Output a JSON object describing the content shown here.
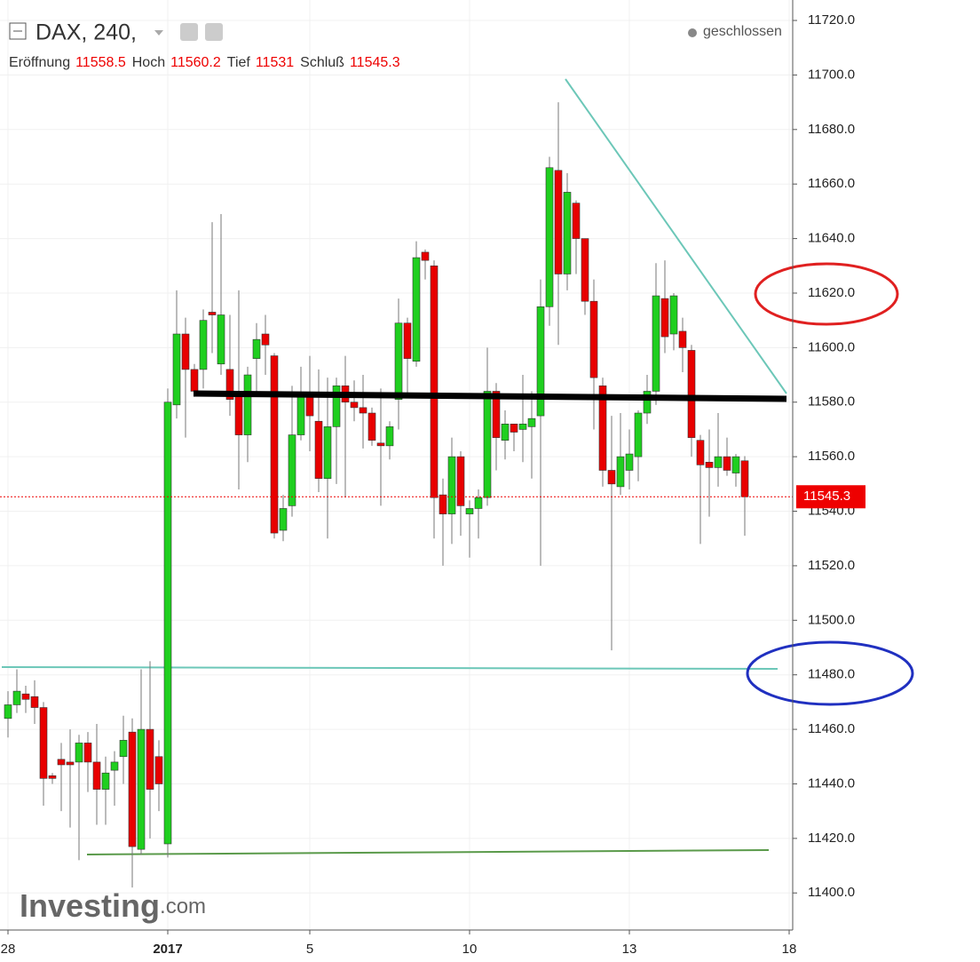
{
  "chart_data": {
    "type": "candlestick",
    "symbol": "DAX, 240,",
    "status": "geschlossen",
    "labels": {
      "open": "Eröffnung",
      "high": "Hoch",
      "low": "Tief",
      "close": "Schluß"
    },
    "watermark": "Investing",
    "watermark_suffix": ".com",
    "up_color": "#1fcf1f",
    "down_color": "#e80000",
    "grid": true,
    "xlim": [
      -0.9,
      88.4
    ],
    "ylim": [
      11386.4,
      11727.5
    ],
    "xticks": [
      {
        "value": 0,
        "label": "28"
      },
      {
        "value": 18,
        "label": "2017"
      },
      {
        "value": 34,
        "label": "5"
      },
      {
        "value": 52,
        "label": "10"
      },
      {
        "value": 70,
        "label": "13"
      },
      {
        "value": 88,
        "label": "18"
      }
    ],
    "yticks": [
      {
        "value": 11400,
        "label": "11400.0"
      },
      {
        "value": 11420,
        "label": "11420.0"
      },
      {
        "value": 11440,
        "label": "11440.0"
      },
      {
        "value": 11460,
        "label": "11460.0"
      },
      {
        "value": 11480,
        "label": "11480.0"
      },
      {
        "value": 11500,
        "label": "11500.0"
      },
      {
        "value": 11520,
        "label": "11520.0"
      },
      {
        "value": 11540,
        "label": "11540.0"
      },
      {
        "value": 11560,
        "label": "11560.0"
      },
      {
        "value": 11580,
        "label": "11580.0"
      },
      {
        "value": 11600,
        "label": "11600.0"
      },
      {
        "value": 11620,
        "label": "11620.0"
      },
      {
        "value": 11640,
        "label": "11640.0"
      },
      {
        "value": 11660,
        "label": "11660.0"
      },
      {
        "value": 11680,
        "label": "11680.0"
      },
      {
        "value": 11700,
        "label": "11700.0"
      },
      {
        "value": 11720,
        "label": "11720.0"
      }
    ],
    "open": [
      11464,
      11469,
      11473,
      11472,
      11468,
      11443,
      11449,
      11448,
      11448,
      11455,
      11448,
      11438,
      11445,
      11450,
      11459,
      11416,
      11460,
      11450,
      11418,
      11579,
      11605,
      11592,
      11592,
      11613,
      11594,
      11592,
      11582,
      11568,
      11596,
      11605,
      11597,
      11533,
      11542,
      11568,
      11582,
      11573,
      11552,
      11571,
      11586,
      11580,
      11578,
      11576,
      11565,
      11564,
      11581,
      11609,
      11595,
      11635,
      11630,
      11546,
      11539,
      11560,
      11539,
      11541,
      11545,
      11584,
      11566,
      11572,
      11570,
      11571,
      11575,
      11615,
      11665,
      11627,
      11653,
      11640,
      11617,
      11586,
      11555,
      11549,
      11555,
      11560,
      11576,
      11584,
      11618,
      11605,
      11606,
      11599,
      11566,
      11558,
      11556,
      11560,
      11554,
      11558.5
    ],
    "high": [
      11474,
      11482,
      11476,
      11478,
      11470,
      11444,
      11455,
      11460,
      11458,
      11459,
      11462,
      11450,
      11452,
      11465,
      11464,
      11482,
      11485,
      11456,
      11585,
      11621,
      11611,
      11594,
      11614,
      11646,
      11649,
      11612,
      11621,
      11593,
      11609,
      11612,
      11598,
      11546,
      11586,
      11593,
      11597,
      11592,
      11589,
      11589,
      11597,
      11588,
      11590,
      11578,
      11585,
      11573,
      11618,
      11611,
      11639,
      11636,
      11632,
      11552,
      11567,
      11562,
      11544,
      11548,
      11600,
      11587,
      11577,
      11572,
      11590,
      11584,
      11625,
      11670,
      11690,
      11664,
      11654,
      11640,
      11625,
      11589,
      11575,
      11576,
      11570,
      11577,
      11590,
      11631,
      11632,
      11620,
      11611,
      11601,
      11568,
      11570,
      11576,
      11567,
      11561,
      11560.2
    ],
    "low": [
      11457,
      11466,
      11466,
      11462,
      11432,
      11440,
      11430,
      11424,
      11412,
      11437,
      11425,
      11425,
      11432,
      11440,
      11402,
      11414,
      11420,
      11430,
      11413,
      11574,
      11567,
      11582,
      11585,
      11598,
      11590,
      11575,
      11548,
      11558,
      11584,
      11590,
      11530,
      11529,
      11538,
      11566,
      11562,
      11547,
      11530,
      11550,
      11545,
      11573,
      11563,
      11564,
      11542,
      11559,
      11570,
      11582,
      11593,
      11625,
      11530,
      11520,
      11528,
      11531,
      11523,
      11530,
      11542,
      11555,
      11559,
      11562,
      11558,
      11552,
      11520,
      11608,
      11601,
      11621,
      11627,
      11612,
      11570,
      11549,
      11489,
      11546,
      11548,
      11551,
      11572,
      11579,
      11598,
      11599,
      11591,
      11560,
      11528,
      11538,
      11549,
      11553,
      11549,
      11531.0
    ],
    "close": [
      11469,
      11474,
      11471,
      11468,
      11442,
      11442,
      11447,
      11447,
      11455,
      11448,
      11438,
      11444,
      11448,
      11456,
      11417,
      11460,
      11438,
      11440,
      11580,
      11605,
      11592,
      11584,
      11610,
      11612,
      11612,
      11581,
      11568,
      11590,
      11603,
      11601,
      11532,
      11541,
      11568,
      11582,
      11575,
      11552,
      11571,
      11586,
      11580,
      11578,
      11576,
      11566,
      11564,
      11571,
      11609,
      11596,
      11633,
      11632,
      11545,
      11539,
      11560,
      11542,
      11541,
      11545,
      11584,
      11567,
      11572,
      11569,
      11572,
      11574,
      11615,
      11666,
      11627,
      11657,
      11640,
      11617,
      11589,
      11555,
      11550,
      11560,
      11561,
      11576,
      11584,
      11619,
      11604,
      11619,
      11600,
      11567,
      11557,
      11556,
      11560,
      11555,
      11560,
      11545.3
    ]
  }
}
